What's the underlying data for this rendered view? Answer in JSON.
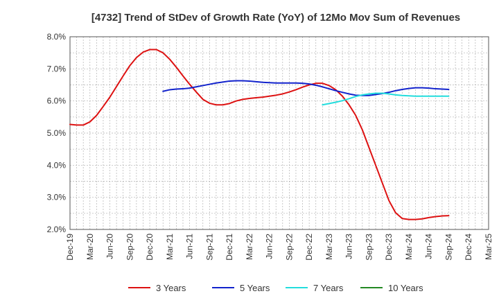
{
  "chart_data": {
    "type": "line",
    "title": "[4732]  Trend of StDev of Growth Rate (YoY) of 12Mo Mov Sum of Revenues",
    "xlabel": "",
    "ylabel": "",
    "ylim": [
      2.0,
      8.0
    ],
    "yticks": [
      "2.0%",
      "3.0%",
      "4.0%",
      "5.0%",
      "6.0%",
      "7.0%",
      "8.0%"
    ],
    "xticks": [
      "Dec-19",
      "Mar-20",
      "Jun-20",
      "Sep-20",
      "Dec-20",
      "Mar-21",
      "Jun-21",
      "Sep-21",
      "Dec-21",
      "Mar-22",
      "Jun-22",
      "Sep-22",
      "Dec-22",
      "Mar-23",
      "Jun-23",
      "Sep-23",
      "Dec-23",
      "Mar-24",
      "Jun-24",
      "Sep-24",
      "Dec-24",
      "Mar-25"
    ],
    "grid": true,
    "legend_position": "bottom",
    "series": [
      {
        "name": "3 Years",
        "color": "#dd1111",
        "start_index": 0,
        "values": [
          5.27,
          5.25,
          5.25,
          5.35,
          5.55,
          5.83,
          6.12,
          6.45,
          6.78,
          7.1,
          7.35,
          7.52,
          7.6,
          7.6,
          7.5,
          7.3,
          7.05,
          6.78,
          6.52,
          6.28,
          6.05,
          5.93,
          5.88,
          5.88,
          5.92,
          6.0,
          6.05,
          6.08,
          6.1,
          6.12,
          6.15,
          6.18,
          6.22,
          6.28,
          6.35,
          6.43,
          6.5,
          6.55,
          6.55,
          6.48,
          6.35,
          6.15,
          5.88,
          5.55,
          5.1,
          4.55,
          4.0,
          3.45,
          2.9,
          2.52,
          2.34,
          2.31,
          2.31,
          2.33,
          2.37,
          2.4,
          2.42,
          2.43
        ]
      },
      {
        "name": "5 Years",
        "color": "#1122cc",
        "start_index": 14,
        "values": [
          6.3,
          6.35,
          6.37,
          6.38,
          6.4,
          6.44,
          6.48,
          6.52,
          6.56,
          6.59,
          6.62,
          6.63,
          6.63,
          6.62,
          6.6,
          6.58,
          6.57,
          6.56,
          6.56,
          6.56,
          6.56,
          6.55,
          6.53,
          6.49,
          6.44,
          6.38,
          6.32,
          6.27,
          6.22,
          6.18,
          6.17,
          6.17,
          6.2,
          6.23,
          6.27,
          6.32,
          6.36,
          6.39,
          6.41,
          6.41,
          6.4,
          6.38,
          6.37,
          6.36
        ]
      },
      {
        "name": "7 Years",
        "color": "#22dddd",
        "start_index": 38,
        "values": [
          5.88,
          5.92,
          5.96,
          6.01,
          6.07,
          6.14,
          6.19,
          6.22,
          6.24,
          6.24,
          6.22,
          6.19,
          6.17,
          6.16,
          6.15,
          6.15,
          6.15,
          6.15,
          6.15,
          6.15
        ]
      },
      {
        "name": "10 Years",
        "color": "#228822",
        "start_index": 0,
        "values": []
      }
    ]
  }
}
